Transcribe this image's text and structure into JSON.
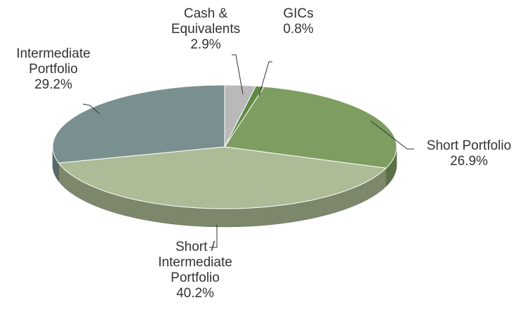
{
  "chart_data": {
    "type": "pie3d",
    "categories": [
      "Cash & Equivalents",
      "GICs",
      "Short Portfolio",
      "Short / Intermediate Portfolio",
      "Intermediate Portfolio"
    ],
    "values": [
      2.9,
      0.8,
      26.9,
      40.2,
      29.2
    ],
    "value_labels": [
      "2.9%",
      "0.8%",
      "26.9%",
      "40.2%",
      "29.2%"
    ],
    "colors": [
      "#b9b9b9",
      "#5e8a45",
      "#7e9d60",
      "#adbb96",
      "#7a9090"
    ]
  }
}
